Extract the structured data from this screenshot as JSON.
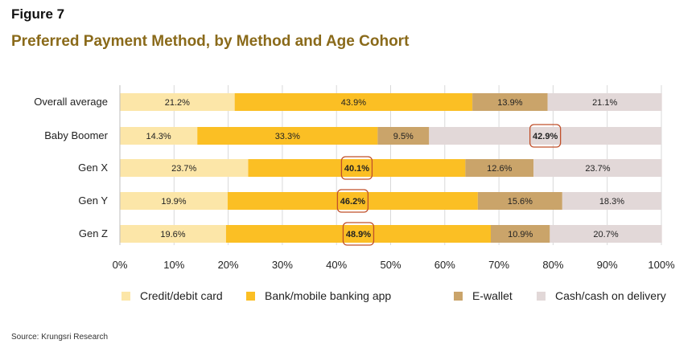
{
  "figure_label": "Figure 7",
  "title": "Preferred Payment Method, by Method and Age Cohort",
  "source": "Source: Krungsri Research",
  "colors": {
    "credit": "#fce6a8",
    "bank": "#fbbf24",
    "ewallet": "#caa46a",
    "cash": "#e2d8d8",
    "highlight": "#c0502b",
    "grid": "#d9d9d9"
  },
  "chart_data": {
    "type": "bar",
    "orientation": "horizontal",
    "stacked": true,
    "categories": [
      "Overall average",
      "Baby Boomer",
      "Gen X",
      "Gen Y",
      "Gen Z"
    ],
    "series": [
      {
        "name": "Credit/debit card",
        "values": [
          21.2,
          14.3,
          23.7,
          19.9,
          19.6
        ],
        "labels": [
          "21.2%",
          "14.3%",
          "23.7%",
          "19.9%",
          "19.6%"
        ]
      },
      {
        "name": "Bank/mobile banking app",
        "values": [
          43.9,
          33.3,
          40.1,
          46.2,
          48.9
        ],
        "labels": [
          "43.9%",
          "33.3%",
          "40.1%",
          "46.2%",
          "48.9%"
        ]
      },
      {
        "name": "E-wallet",
        "values": [
          13.9,
          9.5,
          12.6,
          15.6,
          10.9
        ],
        "labels": [
          "13.9%",
          "9.5%",
          "12.6%",
          "15.6%",
          "10.9%"
        ]
      },
      {
        "name": "Cash/cash on delivery",
        "values": [
          21.1,
          42.9,
          23.7,
          18.3,
          20.7
        ],
        "labels": [
          "21.1%",
          "42.9%",
          "23.7%",
          "18.3%",
          "20.7%"
        ]
      }
    ],
    "highlighted": [
      {
        "category": "Baby Boomer",
        "series": "Cash/cash on delivery"
      },
      {
        "category": "Gen X",
        "series": "Bank/mobile banking app"
      },
      {
        "category": "Gen Y",
        "series": "Bank/mobile banking app"
      },
      {
        "category": "Gen Z",
        "series": "Bank/mobile banking app"
      }
    ],
    "xlim": [
      0,
      100
    ],
    "xticks": [
      "0%",
      "10%",
      "20%",
      "30%",
      "40%",
      "50%",
      "60%",
      "70%",
      "80%",
      "90%",
      "100%"
    ],
    "grid": true,
    "legend_position": "bottom"
  }
}
